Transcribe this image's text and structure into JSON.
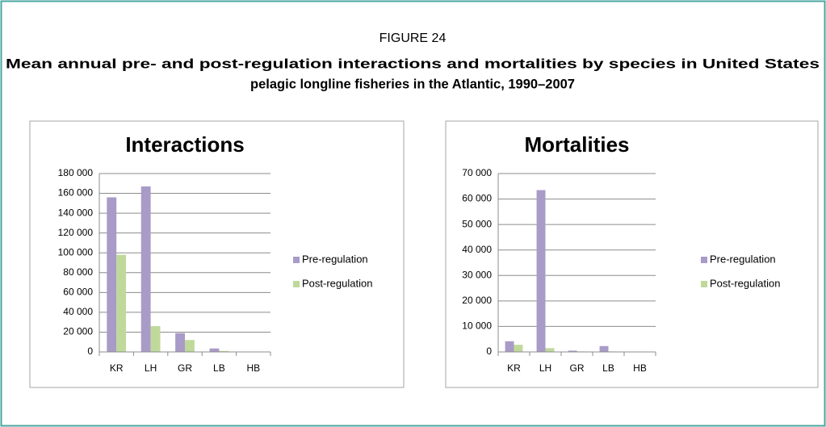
{
  "figure": {
    "label": "FIGURE 24",
    "title": [
      "Mean annual pre- and post-regulation interactions and mortalities by species in United States",
      "pelagic longline fisheries in the Atlantic, 1990–2007"
    ]
  },
  "chart_data": [
    {
      "type": "bar",
      "title": "Interactions",
      "categories": [
        "KR",
        "LH",
        "GR",
        "LB",
        "HB"
      ],
      "series": [
        {
          "name": "Pre-regulation",
          "color": "#a99bc8",
          "values": [
            156000,
            167000,
            19000,
            3500,
            300
          ]
        },
        {
          "name": "Post-regulation",
          "color": "#bfd99a",
          "values": [
            98000,
            26000,
            12000,
            1000,
            100
          ]
        }
      ],
      "ylim": [
        0,
        180000
      ],
      "yticks": [
        0,
        {
          "value": 20000,
          "label": "20 000"
        },
        {
          "value": 40000,
          "label": "40 000"
        },
        {
          "value": 60000,
          "label": "60 000"
        },
        {
          "value": 80000,
          "label": "80 000"
        },
        {
          "value": 100000,
          "label": "100 000"
        },
        {
          "value": 120000,
          "label": "120 000"
        },
        {
          "value": 140000,
          "label": "140 000"
        },
        {
          "value": 160000,
          "label": "160 000"
        },
        {
          "value": 180000,
          "label": "180 000"
        }
      ],
      "grid": true,
      "legend": "right"
    },
    {
      "type": "bar",
      "title": "Mortalities",
      "categories": [
        "KR",
        "LH",
        "GR",
        "LB",
        "HB"
      ],
      "series": [
        {
          "name": "Pre-regulation",
          "color": "#a99bc8",
          "values": [
            4200,
            63500,
            500,
            2300,
            100
          ]
        },
        {
          "name": "Post-regulation",
          "color": "#bfd99a",
          "values": [
            2800,
            1500,
            200,
            200,
            50
          ]
        }
      ],
      "ylim": [
        0,
        70000
      ],
      "yticks": [
        0,
        {
          "value": 10000,
          "label": "10 000"
        },
        {
          "value": 20000,
          "label": "20 000"
        },
        {
          "value": 30000,
          "label": "30 000"
        },
        {
          "value": 40000,
          "label": "40 000"
        },
        {
          "value": 50000,
          "label": "50 000"
        },
        {
          "value": 60000,
          "label": "60 000"
        },
        {
          "value": 70000,
          "label": "70 000"
        }
      ],
      "grid": true,
      "legend": "right"
    }
  ]
}
